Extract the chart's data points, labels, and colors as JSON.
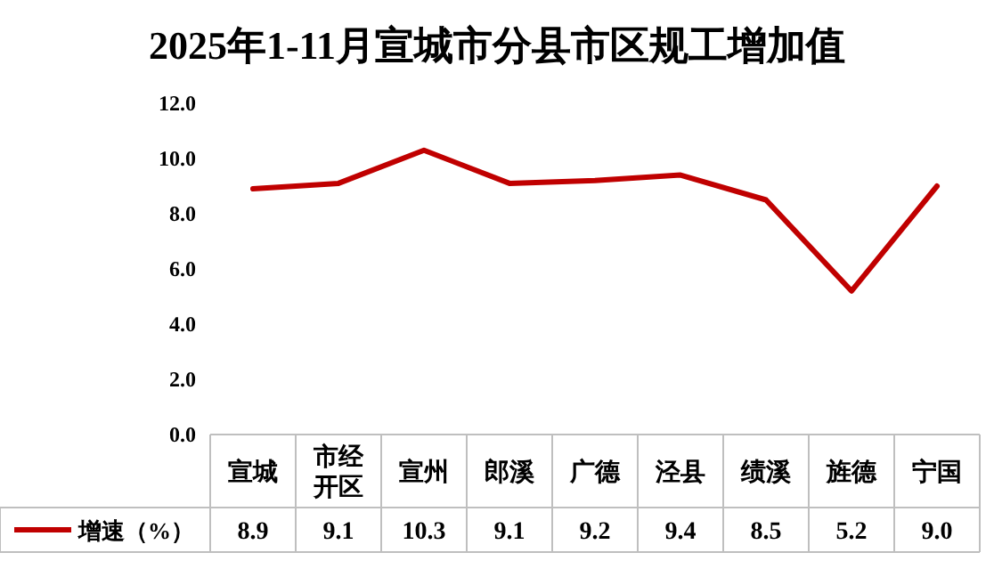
{
  "chart_data": {
    "type": "line",
    "title": "2025年1-11月宣城市分县市区规工增加值",
    "categories": [
      "宣城",
      "市经开区",
      "宣州",
      "郎溪",
      "广德",
      "泾县",
      "绩溪",
      "旌德",
      "宁国"
    ],
    "series": [
      {
        "name": "增速（%）",
        "color": "#c00000",
        "values": [
          8.9,
          9.1,
          10.3,
          9.1,
          9.2,
          9.4,
          8.5,
          5.2,
          9.0
        ],
        "value_labels": [
          "8.9",
          "9.1",
          "10.3",
          "9.1",
          "9.2",
          "9.4",
          "8.5",
          "5.2",
          "9.0"
        ]
      }
    ],
    "ylim": [
      0,
      12
    ],
    "yticks": [
      {
        "value": 0,
        "label": "0.0"
      },
      {
        "value": 2,
        "label": "2.0"
      },
      {
        "value": 4,
        "label": "4.0"
      },
      {
        "value": 6,
        "label": "6.0"
      },
      {
        "value": 8,
        "label": "8.0"
      },
      {
        "value": 10,
        "label": "10.0"
      },
      {
        "value": 12,
        "label": "12.0"
      }
    ],
    "legend": "bottom",
    "grid": false,
    "marker": "none",
    "line_style": "solid"
  }
}
